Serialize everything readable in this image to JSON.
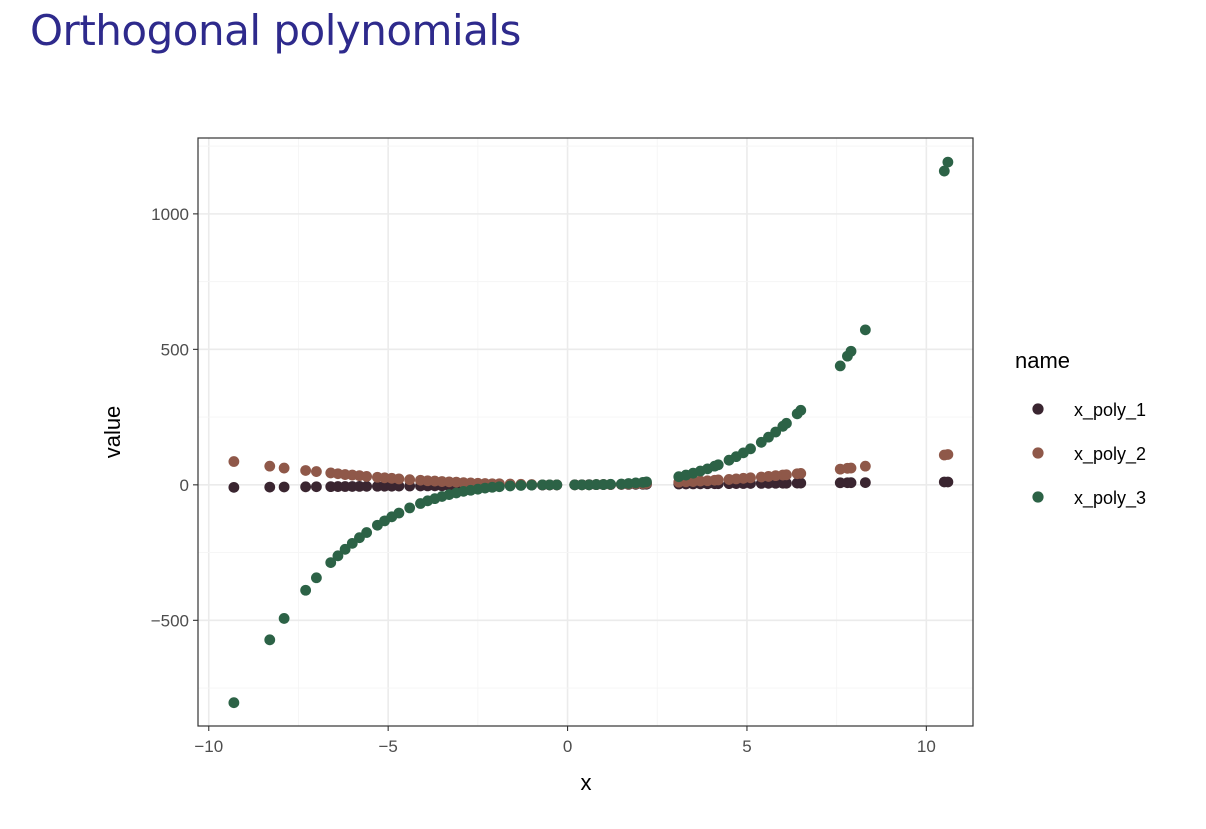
{
  "slide": {
    "title": "Orthogonal polynomials"
  },
  "chart_data": {
    "type": "scatter",
    "xlabel": "x",
    "ylabel": "value",
    "xlim": [
      -10.3,
      11.3
    ],
    "ylim": [
      -890,
      1280
    ],
    "x_ticks": [
      -10,
      -5,
      0,
      5,
      10
    ],
    "x_tick_labels": [
      "−10",
      "−5",
      "0",
      "5",
      "10"
    ],
    "y_ticks": [
      -500,
      0,
      500,
      1000
    ],
    "y_tick_labels": [
      "−500",
      "0",
      "500",
      "1000"
    ],
    "grid": true,
    "theme": "bw",
    "legend": {
      "title": "name",
      "position": "right"
    },
    "x": [
      -9.3,
      -8.3,
      -7.9,
      -7.3,
      -7.0,
      -6.6,
      -6.4,
      -6.2,
      -6.0,
      -5.8,
      -5.6,
      -5.3,
      -5.1,
      -4.9,
      -4.7,
      -4.4,
      -4.1,
      -3.9,
      -3.7,
      -3.5,
      -3.3,
      -3.1,
      -2.9,
      -2.7,
      -2.5,
      -2.3,
      -2.1,
      -1.9,
      -1.6,
      -1.3,
      -1.0,
      -0.7,
      -0.5,
      -0.3,
      0.2,
      0.4,
      0.6,
      0.8,
      1.0,
      1.2,
      1.5,
      1.7,
      1.9,
      2.1,
      2.2,
      3.1,
      3.3,
      3.5,
      3.7,
      3.9,
      4.1,
      4.2,
      4.5,
      4.7,
      4.9,
      5.1,
      5.4,
      5.6,
      5.8,
      6.0,
      6.1,
      6.4,
      6.5,
      7.6,
      7.8,
      7.9,
      8.3,
      10.5,
      10.6
    ],
    "series": [
      {
        "name": "x_poly_1",
        "color": "#3a2530",
        "values": [
          -9.3,
          -8.3,
          -7.9,
          -7.3,
          -7.0,
          -6.6,
          -6.4,
          -6.2,
          -6.0,
          -5.8,
          -5.6,
          -5.3,
          -5.1,
          -4.9,
          -4.7,
          -4.4,
          -4.1,
          -3.9,
          -3.7,
          -3.5,
          -3.3,
          -3.1,
          -2.9,
          -2.7,
          -2.5,
          -2.3,
          -2.1,
          -1.9,
          -1.6,
          -1.3,
          -1.0,
          -0.7,
          -0.5,
          -0.3,
          0.2,
          0.4,
          0.6,
          0.8,
          1.0,
          1.2,
          1.5,
          1.7,
          1.9,
          2.1,
          2.2,
          3.1,
          3.3,
          3.5,
          3.7,
          3.9,
          4.1,
          4.2,
          4.5,
          4.7,
          4.9,
          5.1,
          5.4,
          5.6,
          5.8,
          6.0,
          6.1,
          6.4,
          6.5,
          7.6,
          7.8,
          7.9,
          8.3,
          10.5,
          10.6
        ]
      },
      {
        "name": "x_poly_2",
        "color": "#8f5849",
        "values": [
          86,
          69,
          62,
          53,
          49,
          44,
          41,
          38,
          36,
          34,
          31,
          28,
          26,
          24,
          22,
          19,
          17,
          15,
          14,
          12,
          11,
          10,
          8,
          7,
          6,
          5,
          4,
          4,
          3,
          2,
          1,
          0,
          0,
          0,
          0,
          0,
          0,
          1,
          1,
          1,
          2,
          3,
          4,
          4,
          5,
          10,
          11,
          12,
          14,
          15,
          17,
          18,
          20,
          22,
          24,
          26,
          29,
          31,
          34,
          36,
          37,
          41,
          42,
          58,
          61,
          62,
          69,
          110,
          112
        ]
      },
      {
        "name": "x_poly_3",
        "color": "#2c6246",
        "values": [
          -804,
          -572,
          -493,
          -389,
          -343,
          -287,
          -262,
          -238,
          -216,
          -195,
          -176,
          -149,
          -133,
          -118,
          -104,
          -85,
          -69,
          -59,
          -51,
          -43,
          -36,
          -30,
          -24,
          -20,
          -16,
          -12,
          -9,
          -7,
          -4,
          -2,
          -1,
          0,
          0,
          0,
          0,
          0,
          0,
          1,
          1,
          2,
          3,
          5,
          7,
          9,
          11,
          30,
          36,
          43,
          51,
          59,
          69,
          74,
          91,
          104,
          118,
          133,
          157,
          176,
          195,
          216,
          227,
          262,
          275,
          439,
          475,
          493,
          572,
          1158,
          1191
        ]
      }
    ]
  }
}
